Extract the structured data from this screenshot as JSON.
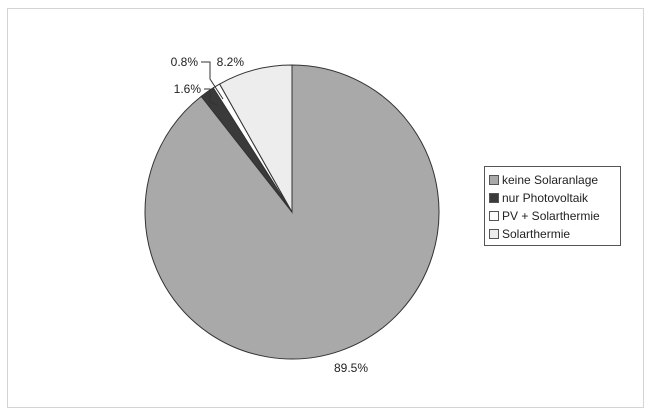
{
  "chart_data": {
    "type": "pie",
    "title": "",
    "start_angle_deg": 0,
    "direction": "clockwise",
    "slices": [
      {
        "label": "keine Solaranlage",
        "value": 89.5,
        "display": "89.5%",
        "color": "#a9a9a9"
      },
      {
        "label": "nur Photovoltaik",
        "value": 1.6,
        "display": "1.6%",
        "color": "#3a3a3a"
      },
      {
        "label": "PV + Solarthermie",
        "value": 0.8,
        "display": "0.8%",
        "color": "#ffffff"
      },
      {
        "label": "Solarthermie",
        "value": 8.2,
        "display": "8.2%",
        "color": "#ededed"
      }
    ],
    "legend": {
      "position": "right"
    }
  }
}
